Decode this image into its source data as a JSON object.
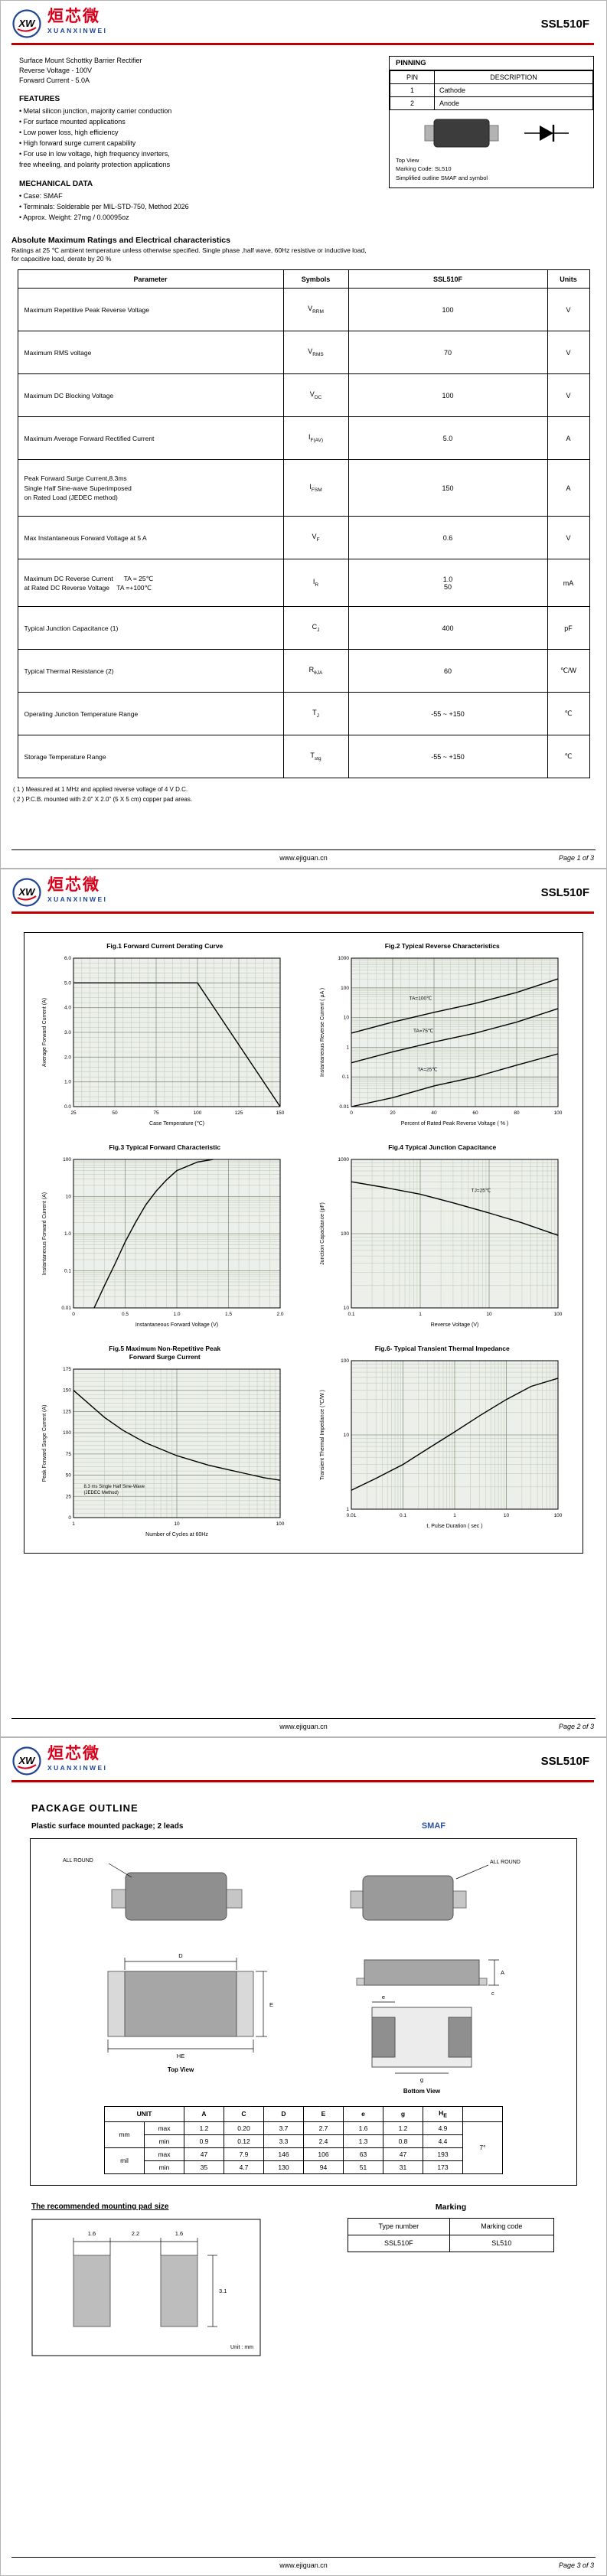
{
  "brand": {
    "logo_cn": "烜芯微",
    "logo_en": "XUANXINWEI",
    "logo_mark": "XW",
    "part_number": "SSL510F"
  },
  "colors": {
    "accent_red": "#c00000",
    "logo_red": "#d9001b",
    "logo_blue": "#1f4396",
    "smaf_blue": "#2b51a3"
  },
  "page1": {
    "description": [
      "Surface Mount Schottky Barrier Rectifier",
      "Reverse Voltage - 100V",
      "Forward Current - 5.0A"
    ],
    "features": {
      "title": "FEATURES",
      "items": [
        "• Metal silicon junction, majority carrier conduction",
        "• For surface mounted applications",
        "• Low power loss, high efficiency",
        "• High forward surge current capability",
        "• For use in low voltage, high frequency inverters,",
        "  free wheeling, and polarity protection applications"
      ]
    },
    "mechanical": {
      "title": "MECHANICAL DATA",
      "items": [
        "• Case: SMAF",
        "• Terminals: Solderable per MIL-STD-750, Method 2026",
        "• Approx. Weight: 27mg / 0.00095oz"
      ]
    },
    "pinning": {
      "title": "PINNING",
      "headers": [
        "PIN",
        "DESCRIPTION"
      ],
      "rows": [
        [
          "1",
          "Cathode"
        ],
        [
          "2",
          "Anode"
        ]
      ],
      "notes": [
        "Top View",
        "Marking Code: SL510",
        "Simplified outline SMAF and symbol"
      ]
    },
    "ratings": {
      "title": "Absolute Maximum Ratings and Electrical characteristics",
      "subtitle_lines": [
        "Ratings at 25 ℃ ambient temperature unless otherwise specified. Single phase ,half wave, 60Hz resistive or inductive load,",
        "for capacitive load, derate by 20 %"
      ],
      "headers": [
        "Parameter",
        "Symbols",
        "SSL510F",
        "Units"
      ],
      "rows": [
        {
          "param": [
            "Maximum Repetitive Peak Reverse Voltage"
          ],
          "sym": "V",
          "sub": "RRM",
          "val": [
            "100"
          ],
          "unit": "V"
        },
        {
          "param": [
            "Maximum RMS voltage"
          ],
          "sym": "V",
          "sub": "RMS",
          "val": [
            "70"
          ],
          "unit": "V"
        },
        {
          "param": [
            "Maximum DC Blocking Voltage"
          ],
          "sym": "V",
          "sub": "DC",
          "val": [
            "100"
          ],
          "unit": "V"
        },
        {
          "param": [
            "Maximum Average Forward Rectified Current"
          ],
          "sym": "I",
          "sub": "F(AV)",
          "val": [
            "5.0"
          ],
          "unit": "A"
        },
        {
          "param": [
            "Peak Forward Surge Current,8.3ms",
            "Single Half Sine-wave Superimposed",
            "on Rated Load (JEDEC method)"
          ],
          "sym": "I",
          "sub": "FSM",
          "val": [
            "150"
          ],
          "unit": "A"
        },
        {
          "param": [
            "Max Instantaneous Forward Voltage at 5 A"
          ],
          "sym": "V",
          "sub": "F",
          "val": [
            "0.6"
          ],
          "unit": "V"
        },
        {
          "param": [
            "Maximum DC Reverse Current      TA = 25℃",
            "at Rated DC Reverse Voltage    TA =+100℃"
          ],
          "sym": "I",
          "sub": "R",
          "val": [
            "1.0",
            "50"
          ],
          "unit": "mA"
        },
        {
          "param": [
            "Typical Junction Capacitance (1)"
          ],
          "sym": "C",
          "sub": "J",
          "val": [
            "400"
          ],
          "unit": "pF"
        },
        {
          "param": [
            "Typical Thermal Resistance (2)"
          ],
          "sym": "R",
          "sub": "θJA",
          "val": [
            "60"
          ],
          "unit": "℃/W"
        },
        {
          "param": [
            "Operating Junction Temperature Range"
          ],
          "sym": "T",
          "sub": "J",
          "val": [
            "-55 ~ +150"
          ],
          "unit": "℃"
        },
        {
          "param": [
            "Storage Temperature Range"
          ],
          "sym": "T",
          "sub": "stg",
          "val": [
            "-55 ~ +150"
          ],
          "unit": "℃"
        }
      ],
      "footnotes": [
        "( 1 ) Measured at 1 MHz and applied reverse voltage of 4 V D.C.",
        "( 2 ) P.C.B. mounted with 2.0\" X 2.0\" (5 X 5 cm) copper pad areas."
      ]
    },
    "footer": {
      "url": "www.ejiguan.cn",
      "page": "Page 1 of 3"
    }
  },
  "chart_data": [
    {
      "id": "fig1",
      "type": "line",
      "title_lines": [
        "Fig.1  Forward Current Derating Curve"
      ],
      "xlabel": "Case Temperature (℃)",
      "ylabel": "Average Forward Current (A)",
      "xscale": "linear",
      "yscale": "linear",
      "xlim": [
        25,
        150
      ],
      "ylim": [
        0,
        6
      ],
      "xticks": [
        25,
        50,
        75,
        100,
        125,
        150
      ],
      "xtick_labels": [
        "25",
        "50",
        "75",
        "100",
        "125",
        "150"
      ],
      "yticks": [
        0,
        1,
        2,
        3,
        4,
        5,
        6
      ],
      "ytick_labels": [
        "0.0",
        "1.0",
        "2.0",
        "3.0",
        "4.0",
        "5.0",
        "6.0"
      ],
      "series": [
        {
          "name": "derating",
          "points": [
            [
              25,
              5
            ],
            [
              100,
              5
            ],
            [
              150,
              0
            ]
          ]
        }
      ],
      "annotations": []
    },
    {
      "id": "fig2",
      "type": "line",
      "title_lines": [
        "Fig.2  Typical Reverse Characteristics"
      ],
      "xlabel": "Percent of Rated Peak Reverse Voltage ( % )",
      "ylabel": "Instantaneous Reverse Current ( μA )",
      "xscale": "linear",
      "yscale": "log",
      "xlim": [
        0,
        100
      ],
      "ylim": [
        0.01,
        1000
      ],
      "xticks": [
        0,
        20,
        40,
        60,
        80,
        100
      ],
      "xtick_labels": [
        "0",
        "20",
        "40",
        "60",
        "80",
        "100"
      ],
      "yticks": [
        0.01,
        0.1,
        1,
        10,
        100,
        1000
      ],
      "ytick_labels": [
        "0.01",
        "0.1",
        "1",
        "10",
        "100",
        "1000"
      ],
      "series": [
        {
          "name": "TA=100C",
          "label": "TA=100℃",
          "label_frac": [
            0.28,
            0.28
          ],
          "points": [
            [
              0,
              3
            ],
            [
              20,
              7
            ],
            [
              40,
              15
            ],
            [
              60,
              30
            ],
            [
              80,
              70
            ],
            [
              100,
              200
            ]
          ]
        },
        {
          "name": "TA=75C",
          "label": "TA=75℃",
          "label_frac": [
            0.3,
            0.5
          ],
          "points": [
            [
              0,
              0.3
            ],
            [
              20,
              0.7
            ],
            [
              40,
              1.5
            ],
            [
              60,
              3
            ],
            [
              80,
              7
            ],
            [
              100,
              20
            ]
          ]
        },
        {
          "name": "TA=25C",
          "label": "TA=25℃",
          "label_frac": [
            0.32,
            0.76
          ],
          "points": [
            [
              0,
              0.01
            ],
            [
              20,
              0.02
            ],
            [
              40,
              0.05
            ],
            [
              60,
              0.1
            ],
            [
              80,
              0.25
            ],
            [
              100,
              0.6
            ]
          ]
        }
      ],
      "annotations": []
    },
    {
      "id": "fig3",
      "type": "line",
      "title_lines": [
        "Fig.3  Typical Forward Characteristic"
      ],
      "xlabel": "Instantaneous Forward Voltage (V)",
      "ylabel": "Instantaneous Forward Current (A)",
      "xscale": "linear",
      "yscale": "log",
      "xlim": [
        0,
        2
      ],
      "ylim": [
        0.01,
        100
      ],
      "xticks": [
        0,
        0.5,
        1,
        1.5,
        2
      ],
      "xtick_labels": [
        "0",
        "0.5",
        "1.0",
        "1.5",
        "2.0"
      ],
      "yticks": [
        0.01,
        0.1,
        1,
        10,
        100
      ],
      "ytick_labels": [
        "0.01",
        "0.1",
        "1.0",
        "10",
        "100"
      ],
      "series": [
        {
          "name": "VF",
          "points": [
            [
              0.2,
              0.01
            ],
            [
              0.3,
              0.04
            ],
            [
              0.4,
              0.15
            ],
            [
              0.5,
              0.6
            ],
            [
              0.6,
              2
            ],
            [
              0.7,
              6
            ],
            [
              0.8,
              14
            ],
            [
              0.9,
              28
            ],
            [
              1.0,
              50
            ],
            [
              1.2,
              85
            ],
            [
              1.35,
              100
            ]
          ]
        }
      ],
      "annotations": []
    },
    {
      "id": "fig4",
      "type": "line",
      "title_lines": [
        "Fig.4  Typical Junction Capacitance"
      ],
      "xlabel": "Reverse Voltage (V)",
      "ylabel": "Junction Capacitance (pF)",
      "xscale": "log",
      "yscale": "log",
      "xlim": [
        0.1,
        100
      ],
      "ylim": [
        10,
        1000
      ],
      "xticks": [
        0.1,
        1,
        10,
        100
      ],
      "xtick_labels": [
        "0.1",
        "1",
        "10",
        "100"
      ],
      "yticks": [
        10,
        100,
        1000
      ],
      "ytick_labels": [
        "10",
        "100",
        "1000"
      ],
      "series": [
        {
          "name": "CJ",
          "label": "TJ=25℃",
          "label_frac": [
            0.58,
            0.22
          ],
          "points": [
            [
              0.1,
              500
            ],
            [
              0.3,
              420
            ],
            [
              1,
              340
            ],
            [
              3,
              260
            ],
            [
              10,
              190
            ],
            [
              30,
              140
            ],
            [
              100,
              95
            ]
          ]
        }
      ],
      "annotations": []
    },
    {
      "id": "fig5",
      "type": "line",
      "title_lines": [
        "Fig.5  Maximum Non-Repetitive Peak",
        "Forward Surge Current"
      ],
      "xlabel": "Number of Cycles at 60Hz",
      "ylabel": "Peak Forward Surge Current (A)",
      "xscale": "log",
      "yscale": "linear",
      "xlim": [
        1,
        100
      ],
      "ylim": [
        0,
        175
      ],
      "xticks": [
        1,
        10,
        100
      ],
      "xtick_labels": [
        "1",
        "10",
        "100"
      ],
      "yticks": [
        0,
        25,
        50,
        75,
        100,
        125,
        150,
        175
      ],
      "ytick_labels": [
        "0",
        "25",
        "50",
        "75",
        "100",
        "125",
        "150",
        "175"
      ],
      "series": [
        {
          "name": "IFSM",
          "points": [
            [
              1,
              150
            ],
            [
              2,
              118
            ],
            [
              3,
              103
            ],
            [
              5,
              88
            ],
            [
              10,
              73
            ],
            [
              20,
              62
            ],
            [
              30,
              57
            ],
            [
              50,
              51
            ],
            [
              70,
              47
            ],
            [
              100,
              44
            ]
          ]
        }
      ],
      "annotations": [
        {
          "frac": [
            0.05,
            0.8
          ],
          "lines": [
            "8.3 ms Single Half Sine-Wave",
            "(JEDEC Method)"
          ]
        }
      ]
    },
    {
      "id": "fig6",
      "type": "line",
      "title_lines": [
        "Fig.6- Typical Transient Thermal Impedance"
      ],
      "xlabel": "t, Pulse Duration ( sec )",
      "ylabel": "Transient Thermal Impedance (℃/W )",
      "xscale": "log",
      "yscale": "log",
      "xlim": [
        0.01,
        100
      ],
      "ylim": [
        1,
        100
      ],
      "xticks": [
        0.01,
        0.1,
        1,
        10,
        100
      ],
      "xtick_labels": [
        "0.01",
        "0.1",
        "1",
        "10",
        "100"
      ],
      "yticks": [
        1,
        10,
        100
      ],
      "ytick_labels": [
        "1",
        "10",
        "100"
      ],
      "series": [
        {
          "name": "Zth",
          "points": [
            [
              0.01,
              1.8
            ],
            [
              0.03,
              2.6
            ],
            [
              0.1,
              4
            ],
            [
              0.3,
              6.5
            ],
            [
              1,
              11
            ],
            [
              3,
              18
            ],
            [
              10,
              30
            ],
            [
              30,
              45
            ],
            [
              100,
              58
            ]
          ]
        }
      ],
      "annotations": []
    }
  ],
  "page2": {
    "footer": {
      "url": "www.ejiguan.cn",
      "page": "Page 2 of 3"
    }
  },
  "page3": {
    "title": "PACKAGE OUTLINE",
    "subtitle": "Plastic surface mounted package; 2 leads",
    "package_name": "SMAF",
    "outline": {
      "all_round": "ALL ROUND",
      "top_view": "Top View",
      "bottom_view": "Bottom View",
      "dim_d": "D",
      "dim_he": "HE",
      "dim_e_big": "E",
      "dim_a": "A",
      "dim_c": "c",
      "dim_e_small": "e",
      "dim_g": "g"
    },
    "dim_table": {
      "unit_header": "UNIT",
      "col_headers": [
        "A",
        "C",
        "D",
        "E",
        "e",
        "g",
        "H|E"
      ],
      "angle_header": "",
      "angle_value": "7°",
      "groups": [
        {
          "unit": "mm",
          "rows": [
            {
              "k": "max",
              "v": [
                "1.2",
                "0.20",
                "3.7",
                "2.7",
                "1.6",
                "1.2",
                "4.9"
              ]
            },
            {
              "k": "min",
              "v": [
                "0.9",
                "0.12",
                "3.3",
                "2.4",
                "1.3",
                "0.8",
                "4.4"
              ]
            }
          ]
        },
        {
          "unit": "mil",
          "rows": [
            {
              "k": "max",
              "v": [
                "47",
                "7.9",
                "146",
                "106",
                "63",
                "47",
                "193"
              ]
            },
            {
              "k": "min",
              "v": [
                "35",
                "4.7",
                "130",
                "94",
                "51",
                "31",
                "173"
              ]
            }
          ]
        }
      ]
    },
    "pad": {
      "title": "The recommended mounting pad size",
      "dims": [
        "1.6",
        "2.2",
        "1.6",
        "3.1"
      ],
      "unit_note": "Unit : mm"
    },
    "marking": {
      "title": "Marking",
      "headers": [
        "Type number",
        "Marking code"
      ],
      "row": [
        "SSL510F",
        "SL510"
      ]
    },
    "footer": {
      "url": "www.ejiguan.cn",
      "page": "Page 3 of 3"
    }
  }
}
